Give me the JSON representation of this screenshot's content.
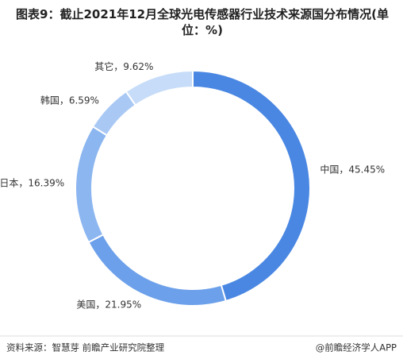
{
  "chart_data": {
    "type": "donut",
    "title": "图表9：截止2021年12月全球光电传感器行业技术来源国分布情况(单位：%)",
    "categories": [
      "中国",
      "美国",
      "日本",
      "韩国",
      "其它"
    ],
    "values": [
      45.45,
      21.95,
      16.39,
      6.59,
      9.62
    ],
    "value_labels": [
      "中国，45.45%",
      "美国，21.95%",
      "日本，16.39%",
      "韩国，6.59%",
      "其它，9.62%"
    ],
    "colors": [
      "#4a87e2",
      "#6ca0ea",
      "#8cb6f0",
      "#a9c9f4",
      "#c6dcf8"
    ],
    "source": "资料来源：智慧芽 前瞻产业研究院整理",
    "brand": "@前瞻经济学人APP"
  }
}
